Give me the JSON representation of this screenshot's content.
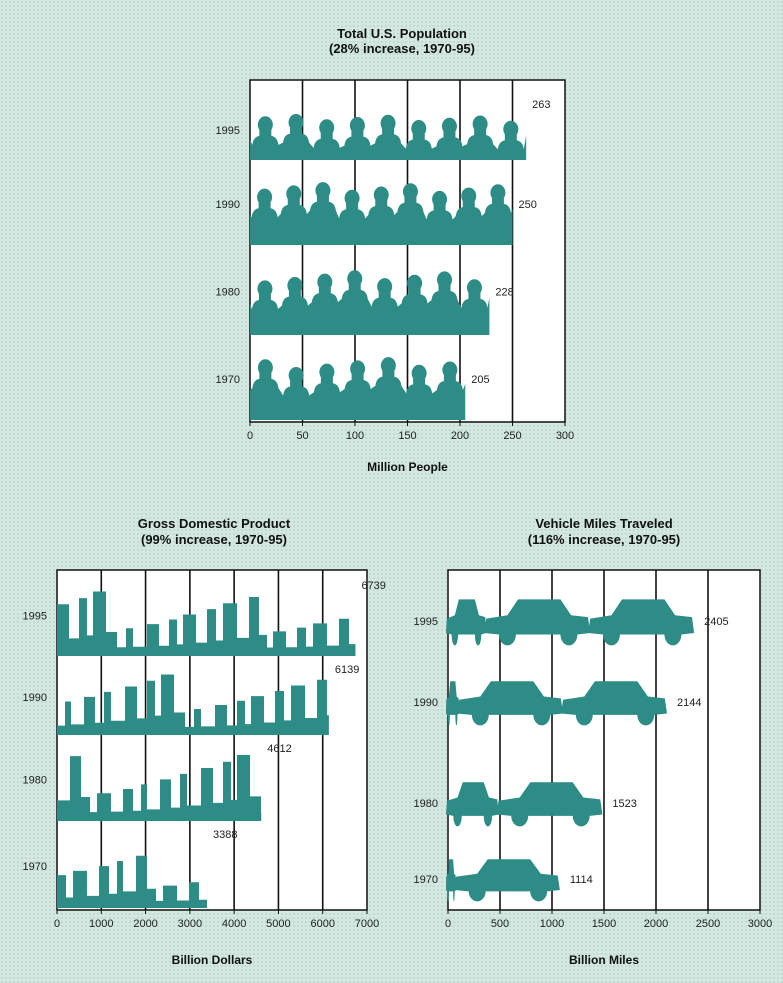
{
  "chart_data": [
    {
      "type": "bar",
      "orientation": "horizontal",
      "title": "Total U.S. Population",
      "subtitle": "(28% increase, 1970-95)",
      "xlabel": "Million People",
      "categories": [
        "1995",
        "1990",
        "1980",
        "1970"
      ],
      "values": [
        263,
        250,
        228,
        205
      ],
      "value_labels": [
        "263",
        "250",
        "228",
        "205"
      ],
      "xlim": [
        0,
        300
      ],
      "xticks": [
        "0",
        "50",
        "100",
        "150",
        "200",
        "250",
        "300"
      ],
      "pictogram": "people",
      "grid": true,
      "bar_color": "#2d8c86"
    },
    {
      "type": "bar",
      "orientation": "horizontal",
      "title": "Gross Domestic Product",
      "subtitle": "(99% increase, 1970-95)",
      "xlabel": "Billion Dollars",
      "categories": [
        "1995",
        "1990",
        "1980",
        "1970"
      ],
      "values": [
        6739,
        6139,
        4612,
        3388
      ],
      "value_labels": [
        "6739",
        "6139",
        "4612",
        "3388"
      ],
      "xlim": [
        0,
        7000
      ],
      "xticks": [
        "0",
        "1000",
        "2000",
        "3000",
        "4000",
        "5000",
        "6000",
        "7000"
      ],
      "pictogram": "city skyline",
      "grid": true,
      "bar_color": "#2d8c86"
    },
    {
      "type": "bar",
      "orientation": "horizontal",
      "title": "Vehicle Miles Traveled",
      "subtitle": "(116% increase, 1970-95)",
      "xlabel": "Billion Miles",
      "categories": [
        "1995",
        "1990",
        "1980",
        "1970"
      ],
      "values": [
        2405,
        2144,
        1523,
        1114
      ],
      "value_labels": [
        "2405",
        "2144",
        "1523",
        "1114"
      ],
      "xlim": [
        0,
        3000
      ],
      "xticks": [
        "0",
        "500",
        "1000",
        "1500",
        "2000",
        "2500",
        "3000"
      ],
      "pictogram": "cars",
      "grid": true,
      "bar_color": "#2d8c86"
    }
  ]
}
